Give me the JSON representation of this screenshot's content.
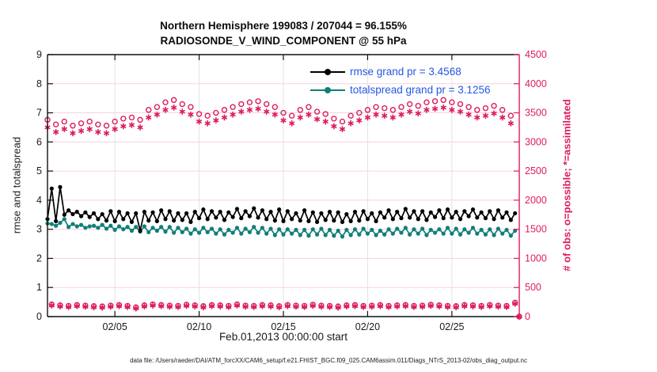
{
  "title": {
    "line1": "Northern Hemisphere 199083 / 207044 = 96.155%",
    "line2": "RADIOSONDE_V_WIND_COMPONENT @ 55 hPa"
  },
  "legend": {
    "items": [
      {
        "label": "rmse grand pr = 3.4568",
        "color": "#000000"
      },
      {
        "label": "totalspread grand pr = 3.1256",
        "color": "#0f8076"
      }
    ],
    "text_color": "#2457e6"
  },
  "footer": {
    "datafile": "data file: /Users/raeder/DAI/ATM_forcXX/CAM6_setup/f.e21.FHIST_BGC.f09_025.CAM6assim.011/Diags_NTrS_2013-02/obs_diag_output.nc"
  },
  "chart_data": {
    "type": "line",
    "title": "Northern Hemisphere 199083 / 207044 = 96.155%",
    "subtitle": "RADIOSONDE_V_WIND_COMPONENT @ 55 hPa",
    "xlabel": "Feb.01,2013 00:00:00 start",
    "ylabel_left": "rmse and totalspread",
    "ylabel_right": "# of obs: o=possible; *=assimilated",
    "ylim_left": [
      0,
      9
    ],
    "ylim_right": [
      0,
      4500
    ],
    "x_days_total": 28,
    "sample_interval_hours": 6,
    "grid": true,
    "legend_position": "top-right-inside",
    "x_ticks": [
      {
        "day": 4,
        "label": "02/05"
      },
      {
        "day": 9,
        "label": "02/10"
      },
      {
        "day": 14,
        "label": "02/15"
      },
      {
        "day": 19,
        "label": "02/20"
      },
      {
        "day": 24,
        "label": "02/25"
      }
    ],
    "y_ticks_left": [
      0,
      1,
      2,
      3,
      4,
      5,
      6,
      7,
      8,
      9
    ],
    "y_ticks_right": [
      0,
      500,
      1000,
      1500,
      2000,
      2500,
      3000,
      3500,
      4000,
      4500
    ],
    "colors": {
      "rmse": "#000000",
      "totalspread": "#0f8076",
      "obs": "#dd1c5f",
      "legend_text": "#2457e6",
      "grid_h": "#f7d2e0",
      "grid_v": "#e3e3e3",
      "axis": "#111111"
    },
    "series": [
      {
        "name": "rmse",
        "axis": "left",
        "marker": "filled-circle",
        "grand_pr": 3.4568,
        "values": [
          3.35,
          4.4,
          3.28,
          4.45,
          3.5,
          3.65,
          3.52,
          3.6,
          3.45,
          3.58,
          3.42,
          3.55,
          3.35,
          3.52,
          3.3,
          3.62,
          3.28,
          3.6,
          3.35,
          3.55,
          3.25,
          3.55,
          2.95,
          3.6,
          3.3,
          3.58,
          3.28,
          3.65,
          3.35,
          3.62,
          3.3,
          3.55,
          3.32,
          3.55,
          3.25,
          3.6,
          3.38,
          3.68,
          3.35,
          3.62,
          3.4,
          3.6,
          3.32,
          3.58,
          3.42,
          3.7,
          3.38,
          3.62,
          3.45,
          3.72,
          3.4,
          3.65,
          3.35,
          3.6,
          3.3,
          3.68,
          3.28,
          3.62,
          3.35,
          3.55,
          3.3,
          3.65,
          3.28,
          3.58,
          3.25,
          3.55,
          3.32,
          3.6,
          3.3,
          3.58,
          3.25,
          3.52,
          3.28,
          3.6,
          3.3,
          3.62,
          3.35,
          3.55,
          3.28,
          3.58,
          3.4,
          3.65,
          3.35,
          3.6,
          3.38,
          3.7,
          3.4,
          3.62,
          3.35,
          3.62,
          3.32,
          3.58,
          3.42,
          3.65,
          3.38,
          3.68,
          3.4,
          3.6,
          3.35,
          3.62,
          3.45,
          3.68,
          3.4,
          3.58,
          3.38,
          3.62,
          3.35,
          3.65,
          3.4,
          3.58,
          3.32,
          3.55,
          null
        ]
      },
      {
        "name": "totalspread",
        "axis": "left",
        "marker": "filled-circle",
        "grand_pr": 3.1256,
        "values": [
          3.2,
          3.18,
          3.12,
          3.22,
          3.35,
          3.08,
          3.18,
          3.1,
          3.15,
          3.05,
          3.1,
          3.12,
          3.05,
          3.15,
          3.02,
          3.12,
          2.98,
          3.1,
          3.0,
          3.08,
          2.95,
          3.08,
          2.92,
          3.1,
          2.9,
          3.05,
          2.95,
          3.08,
          2.92,
          3.08,
          2.88,
          3.05,
          2.9,
          3.02,
          2.85,
          3.0,
          2.88,
          3.05,
          2.9,
          3.02,
          2.85,
          3.0,
          2.82,
          2.98,
          2.88,
          3.05,
          2.85,
          3.02,
          2.9,
          3.08,
          2.88,
          3.05,
          2.85,
          3.02,
          2.8,
          3.0,
          2.82,
          3.0,
          2.85,
          2.98,
          2.8,
          2.98,
          2.78,
          3.0,
          2.82,
          3.02,
          2.8,
          2.98,
          2.78,
          2.95,
          2.75,
          2.98,
          2.8,
          3.0,
          2.82,
          3.02,
          2.85,
          2.98,
          2.8,
          2.95,
          2.82,
          3.0,
          2.85,
          3.02,
          2.88,
          3.05,
          2.82,
          3.0,
          2.85,
          3.02,
          2.8,
          2.98,
          2.88,
          3.0,
          2.85,
          3.05,
          2.85,
          3.02,
          2.82,
          3.0,
          2.88,
          3.05,
          2.85,
          2.98,
          2.82,
          3.0,
          2.8,
          3.02,
          2.85,
          2.98,
          2.78,
          2.95,
          null
        ]
      },
      {
        "name": "obs_possible",
        "axis": "right",
        "marker": "open-circle",
        "values": [
          3380,
          210,
          3300,
          195,
          3350,
          185,
          3280,
          200,
          3320,
          190,
          3350,
          180,
          3300,
          175,
          3280,
          190,
          3350,
          200,
          3400,
          185,
          3420,
          160,
          3380,
          195,
          3550,
          210,
          3600,
          200,
          3680,
          190,
          3720,
          185,
          3650,
          205,
          3600,
          195,
          3480,
          180,
          3450,
          200,
          3500,
          195,
          3550,
          185,
          3600,
          210,
          3650,
          190,
          3680,
          185,
          3700,
          200,
          3650,
          195,
          3600,
          180,
          3500,
          200,
          3450,
          190,
          3550,
          185,
          3600,
          205,
          3520,
          190,
          3480,
          185,
          3400,
          175,
          3350,
          195,
          3450,
          200,
          3500,
          185,
          3550,
          190,
          3600,
          200,
          3580,
          185,
          3550,
          195,
          3600,
          200,
          3650,
          185,
          3620,
          190,
          3680,
          205,
          3700,
          195,
          3720,
          185,
          3680,
          180,
          3650,
          200,
          3600,
          195,
          3550,
          185,
          3580,
          200,
          3620,
          190,
          3550,
          185,
          3450,
          240,
          0
        ]
      },
      {
        "name": "obs_assimilated",
        "axis": "right",
        "marker": "asterisk",
        "values": [
          3250,
          190,
          3170,
          175,
          3220,
          165,
          3150,
          180,
          3190,
          170,
          3220,
          160,
          3170,
          155,
          3150,
          170,
          3220,
          180,
          3270,
          165,
          3290,
          140,
          3250,
          175,
          3420,
          190,
          3470,
          180,
          3550,
          170,
          3590,
          165,
          3520,
          185,
          3470,
          175,
          3350,
          160,
          3320,
          180,
          3370,
          175,
          3420,
          165,
          3470,
          190,
          3520,
          170,
          3550,
          165,
          3570,
          180,
          3520,
          175,
          3470,
          160,
          3370,
          180,
          3320,
          170,
          3420,
          165,
          3470,
          185,
          3390,
          170,
          3350,
          165,
          3270,
          155,
          3220,
          175,
          3320,
          180,
          3370,
          165,
          3420,
          170,
          3470,
          180,
          3450,
          165,
          3420,
          175,
          3470,
          180,
          3520,
          165,
          3490,
          170,
          3550,
          185,
          3570,
          175,
          3590,
          165,
          3550,
          160,
          3520,
          180,
          3470,
          175,
          3420,
          165,
          3450,
          180,
          3490,
          170,
          3420,
          165,
          3320,
          220,
          0
        ]
      }
    ]
  }
}
